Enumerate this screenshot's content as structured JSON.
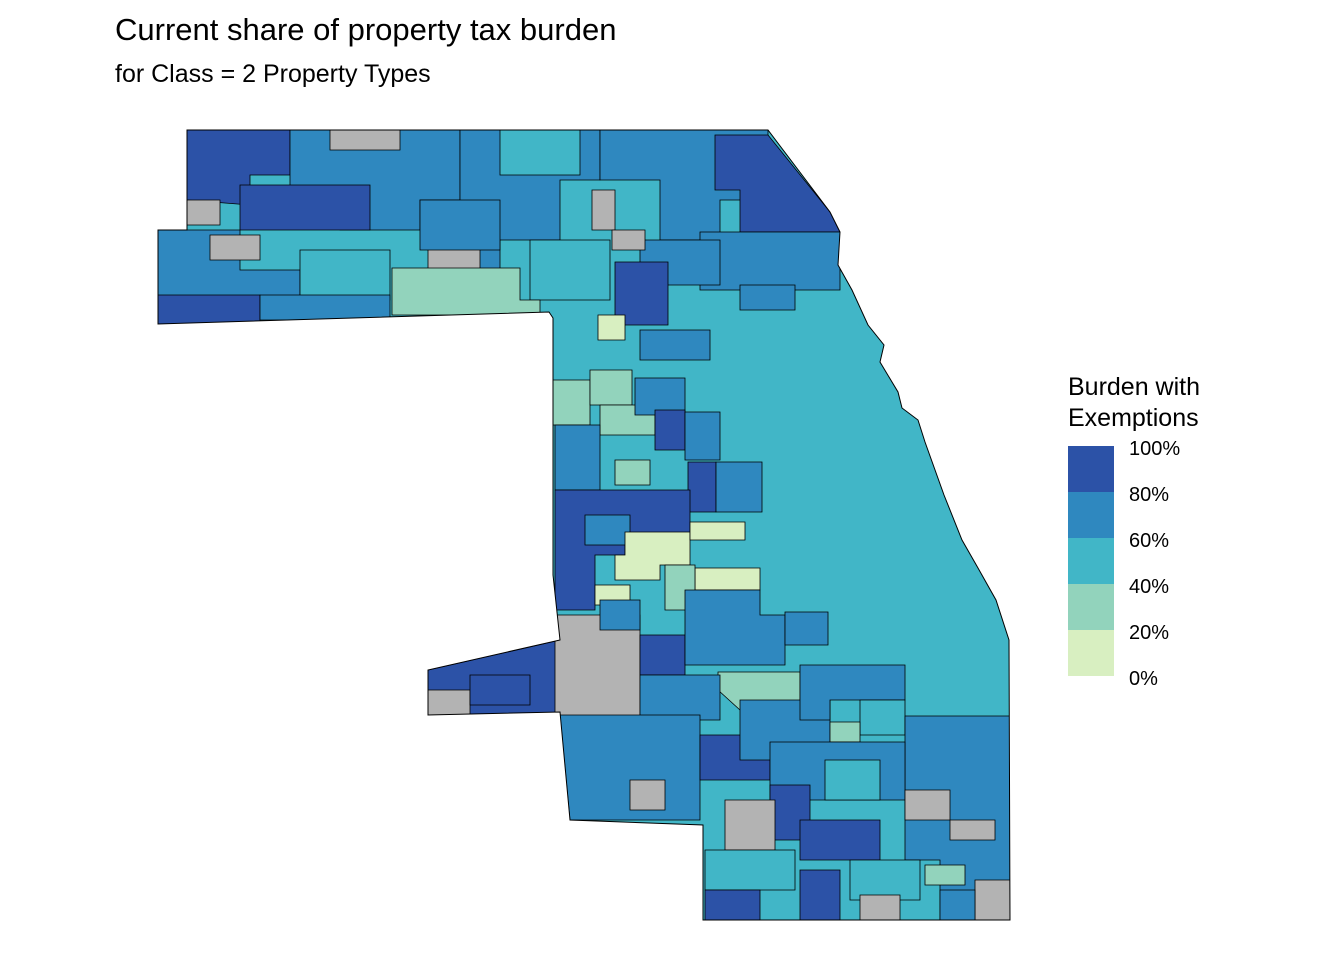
{
  "title": "Current share of property tax burden",
  "subtitle": "for Class = 2 Property Types",
  "legend": {
    "title_line1": "Burden with",
    "title_line2": "Exemptions",
    "bins": [
      {
        "label": "100%",
        "color": "#2c52a7"
      },
      {
        "label": "80%",
        "color": "#2f88bf"
      },
      {
        "label": "60%",
        "color": "#41b6c7"
      },
      {
        "label": "40%",
        "color": "#92d3bc"
      },
      {
        "label": "20%",
        "color": "#d8efc1"
      },
      {
        "label": "0%",
        "color": null
      }
    ],
    "no_data_color": "#b3b3b3"
  }
}
